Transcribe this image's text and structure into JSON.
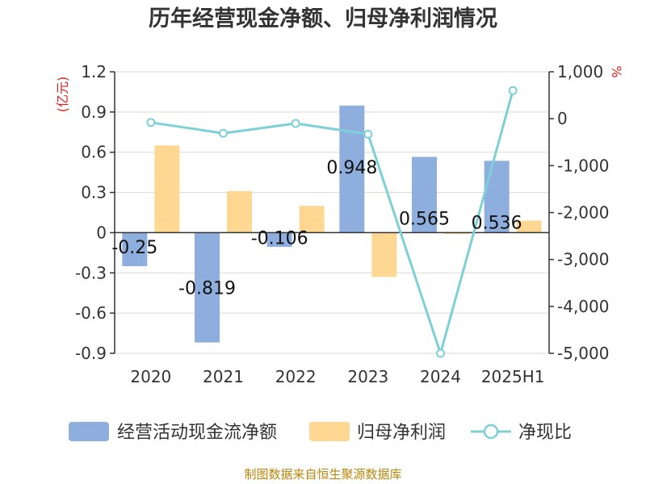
{
  "title": "历年经营现金净额、归母净利润情况",
  "source": "制图数据来自恒生聚源数据库",
  "colors": {
    "operating": "#8eaedd",
    "profit": "#fed793",
    "ratio": "#7dd0d6",
    "unit": "#e02020",
    "axis": "#333333",
    "grid": "#d9d9d9",
    "source": "#b8860b"
  },
  "chart_data": {
    "type": "bar",
    "title": "历年经营现金净额、归母净利润情况",
    "categories": [
      "2020",
      "2021",
      "2022",
      "2023",
      "2024",
      "2025H1"
    ],
    "y_left": {
      "unit": "(亿元)",
      "range": [
        -0.9,
        1.2
      ],
      "ticks": [
        1.2,
        0.9,
        0.6,
        0.3,
        0,
        -0.3,
        -0.6,
        -0.9
      ],
      "tick_labels": [
        "1.2",
        "0.9",
        "0.6",
        "0.3",
        "0",
        "-0.3",
        "-0.6",
        "-0.9"
      ]
    },
    "y_right": {
      "unit": "%",
      "range": [
        -5000,
        1000
      ],
      "ticks": [
        1000,
        0,
        -1000,
        -2000,
        -3000,
        -4000,
        -5000
      ],
      "tick_labels": [
        "1,000",
        "0",
        "-1,000",
        "-2,000",
        "-3,000",
        "-4,000",
        "-5,000"
      ]
    },
    "series": [
      {
        "name": "经营活动现金流净额",
        "type": "bar",
        "axis": "left",
        "values": [
          -0.25,
          -0.819,
          -0.106,
          0.948,
          0.565,
          0.536
        ],
        "labels": [
          "-0.25",
          "-0.819",
          "-0.106",
          "0.948",
          "0.565",
          "0.536"
        ]
      },
      {
        "name": "归母净利润",
        "type": "bar",
        "axis": "left",
        "values": [
          0.65,
          0.31,
          0.2,
          -0.33,
          -0.01,
          0.09
        ]
      },
      {
        "name": "净现比",
        "type": "line",
        "axis": "right",
        "values": [
          -80,
          -310,
          -100,
          -330,
          -5000,
          600
        ]
      }
    ],
    "grid": true,
    "legend_position": "bottom"
  }
}
